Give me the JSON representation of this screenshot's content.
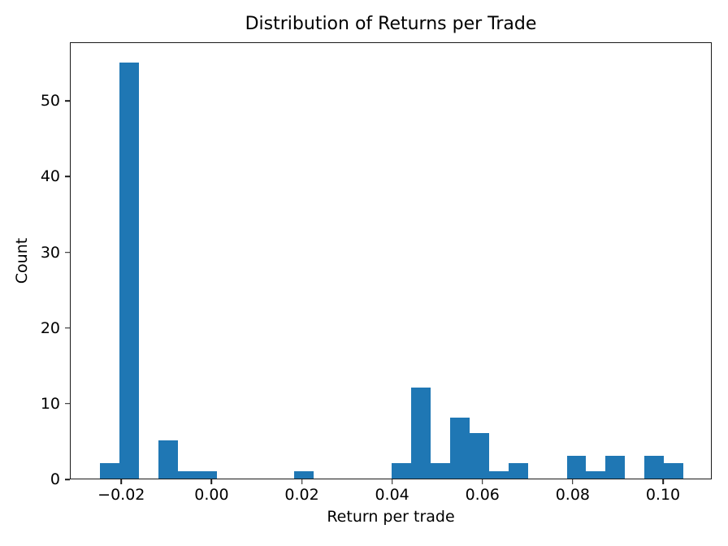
{
  "chart_data": {
    "type": "bar",
    "subtype": "histogram",
    "title": "Distribution of Returns per Trade",
    "xlabel": "Return per trade",
    "ylabel": "Count",
    "bar_color": "#1f77b4",
    "background_color": "#ffffff",
    "grid": false,
    "legend": null,
    "bin_edges": [
      -0.02492,
      -0.02061,
      -0.0163,
      -0.012,
      -0.00769,
      -0.00338,
      0.00093,
      0.00524,
      0.00955,
      0.01386,
      0.01817,
      0.02248,
      0.02679,
      0.0311,
      0.0354,
      0.03971,
      0.04402,
      0.04833,
      0.05264,
      0.05695,
      0.06126,
      0.06557,
      0.06988,
      0.07419,
      0.0785,
      0.08281,
      0.08712,
      0.09143,
      0.09574,
      0.10005,
      0.10433
    ],
    "counts": [
      2,
      55,
      0,
      5,
      1,
      1,
      0,
      0,
      0,
      0,
      1,
      0,
      0,
      0,
      0,
      2,
      12,
      2,
      8,
      6,
      1,
      2,
      0,
      0,
      3,
      1,
      3,
      0,
      3,
      2
    ],
    "total_count": 110,
    "xlim": [
      -0.03139,
      0.1108
    ],
    "ylim": [
      0,
      57.75
    ],
    "xticks": [
      -0.02,
      0.0,
      0.02,
      0.04,
      0.06,
      0.08,
      0.1
    ],
    "xtick_labels": [
      "−0.02",
      "0.00",
      "0.02",
      "0.04",
      "0.06",
      "0.08",
      "0.10"
    ],
    "yticks": [
      0,
      10,
      20,
      30,
      40,
      50
    ],
    "ytick_labels": [
      "0",
      "10",
      "20",
      "30",
      "40",
      "50"
    ]
  }
}
